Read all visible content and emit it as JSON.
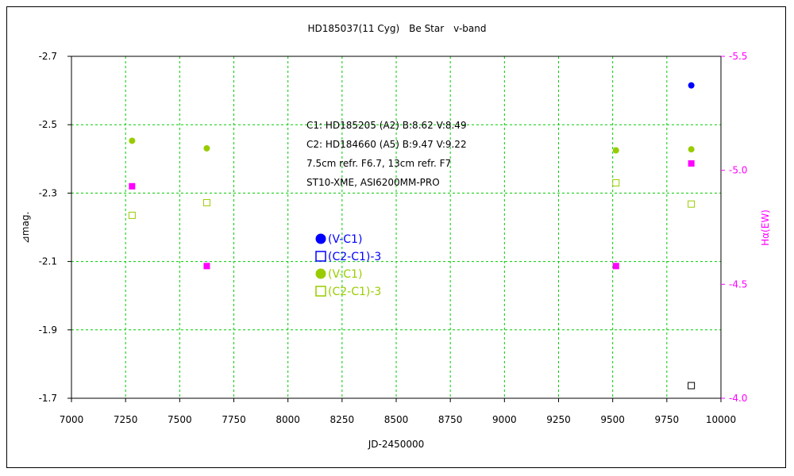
{
  "chart_data": {
    "type": "scatter",
    "title": "HD185037(11 Cyg)　Be Star　v-band",
    "xlabel": "JD-2450000",
    "ylabel": "⊿mag.",
    "y2label": "Hα(EW)",
    "xlim": [
      7000,
      10000
    ],
    "ylim": [
      -1.7,
      -2.7
    ],
    "y2lim": [
      -4.0,
      -5.5
    ],
    "x_ticks": [
      "7000",
      "7250",
      "7500",
      "7750",
      "8000",
      "8250",
      "8500",
      "8750",
      "9000",
      "9250",
      "9500",
      "9750",
      "10000"
    ],
    "y_ticks": [
      "-2.7",
      "-2.5",
      "-2.3",
      "-2.1",
      "-1.9",
      "-1.7"
    ],
    "y2_ticks": [
      "-5.5",
      "-5.0",
      "-4.5",
      "-4.0"
    ],
    "grid": true,
    "annotation": [
      "C1: HD185205 (A2) B:8.62 V:8.49",
      "C2: HD184660 (A5) B:9.47 V:9.22",
      "7.5cm refr. F6.7, 13cm refr. F7",
      "ST10-XME, ASI6200MM-PRO"
    ],
    "legend": [
      {
        "label": "(V-C1)",
        "marker": "circle",
        "color": "#0000ff"
      },
      {
        "label": "(C2-C1)-3",
        "marker": "open-square",
        "color": "#0000ff"
      },
      {
        "label": "(V-C1)",
        "marker": "circle",
        "color": "#99cc00"
      },
      {
        "label": "(C2-C1)-3",
        "marker": "open-square",
        "color": "#99cc00"
      }
    ],
    "series": [
      {
        "marker": "circle",
        "color": "#0000ff",
        "axis": "left",
        "x": [
          9863
        ],
        "y": [
          -2.615
        ]
      },
      {
        "marker": "open-square",
        "color": "#000000",
        "axis": "left",
        "x": [
          9863
        ],
        "y": [
          -1.737
        ]
      },
      {
        "marker": "circle",
        "color": "#99cc00",
        "axis": "left",
        "x": [
          7280,
          7625,
          9515,
          9863
        ],
        "y": [
          -2.453,
          -2.431,
          -2.425,
          -2.428
        ]
      },
      {
        "marker": "open-square",
        "color": "#99cc00",
        "axis": "left",
        "x": [
          7280,
          7625,
          9515,
          9863
        ],
        "y": [
          -2.235,
          -2.272,
          -2.33,
          -2.268
        ]
      },
      {
        "marker": "square",
        "color": "#ff00ff",
        "axis": "right",
        "x": [
          7280,
          7625,
          9515,
          9863
        ],
        "y": [
          -4.93,
          -4.58,
          -4.58,
          -5.03
        ]
      }
    ]
  }
}
